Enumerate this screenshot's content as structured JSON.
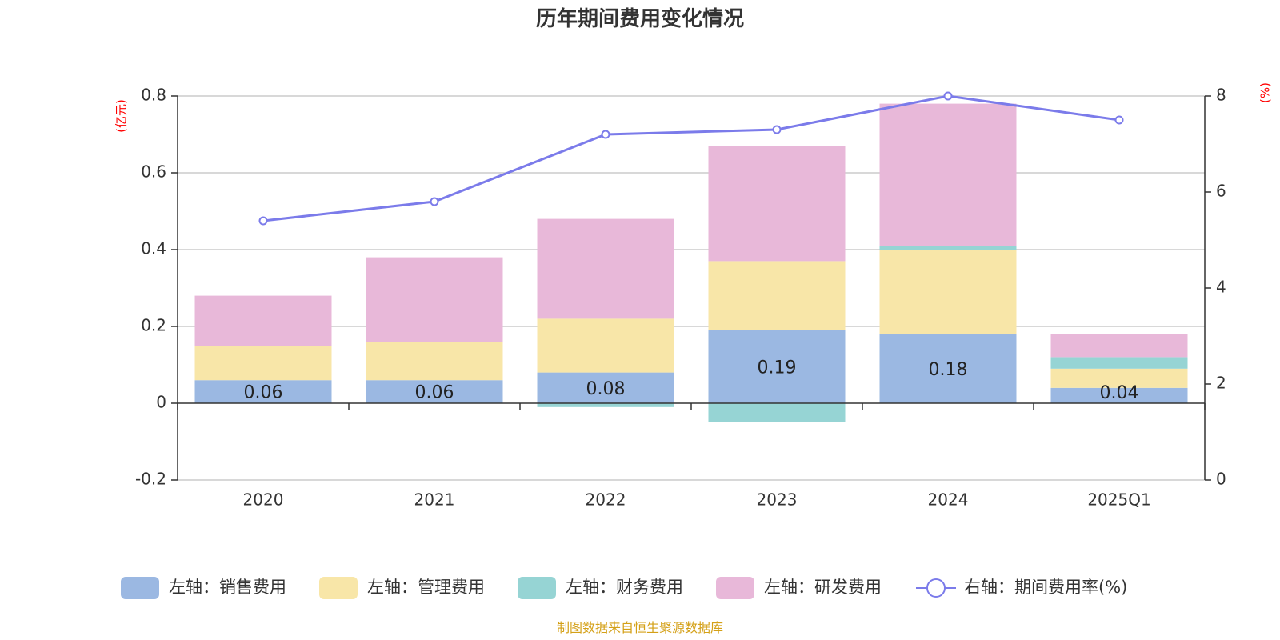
{
  "title": "历年期间费用变化情况",
  "source": "制图数据来自恒生聚源数据库",
  "colors": {
    "sales": "#9bb8e2",
    "admin": "#f8e6a8",
    "finance": "#96d4d4",
    "rnd": "#e8b8d9",
    "rate": "#7b7bea",
    "unit": "#ff0000",
    "source": "#d4a017"
  },
  "chart_data": {
    "type": "bar",
    "stacked": true,
    "categories": [
      "2020",
      "2021",
      "2022",
      "2023",
      "2024",
      "2025Q1"
    ],
    "left_axis": {
      "unit": "(亿元)",
      "ylim": [
        -0.2,
        0.8
      ],
      "ticks": [
        -0.2,
        0,
        0.2,
        0.4,
        0.6,
        0.8
      ],
      "tick_labels": [
        "-0.2",
        "0",
        "0.2",
        "0.4",
        "0.6",
        "0.8"
      ]
    },
    "right_axis": {
      "unit": "(%)",
      "ylim": [
        0,
        8
      ],
      "ticks": [
        0,
        2,
        4,
        6,
        8
      ],
      "tick_labels": [
        "0",
        "2",
        "4",
        "6",
        "8"
      ]
    },
    "series": [
      {
        "key": "sales",
        "name": "左轴：销售费用",
        "type": "bar",
        "axis": "left",
        "values": [
          0.06,
          0.06,
          0.08,
          0.19,
          0.18,
          0.04
        ],
        "labels": [
          "0.06",
          "0.06",
          "0.08",
          "0.19",
          "0.18",
          "0.04"
        ]
      },
      {
        "key": "admin",
        "name": "左轴：管理费用",
        "type": "bar",
        "axis": "left",
        "values": [
          0.09,
          0.1,
          0.14,
          0.18,
          0.22,
          0.05
        ]
      },
      {
        "key": "finance",
        "name": "左轴：财务费用",
        "type": "bar",
        "axis": "left",
        "values": [
          0,
          0,
          -0.01,
          -0.05,
          0.01,
          0.03
        ]
      },
      {
        "key": "rnd",
        "name": "左轴：研发费用",
        "type": "bar",
        "axis": "left",
        "values": [
          0.13,
          0.22,
          0.26,
          0.3,
          0.37,
          0.06
        ]
      },
      {
        "key": "rate",
        "name": "右轴：期间费用率(%)",
        "type": "line",
        "axis": "right",
        "values": [
          5.4,
          5.8,
          7.2,
          7.3,
          8.0,
          7.5
        ]
      }
    ],
    "grid": true,
    "legend_position": "bottom"
  }
}
